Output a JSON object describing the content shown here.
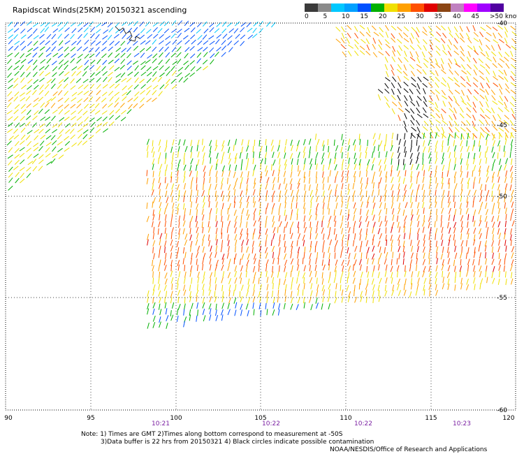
{
  "title": "Rapidscat Winds(25KM) 20150321 ascending",
  "legend": {
    "labels": [
      "0",
      "5",
      "10",
      "15",
      "20",
      "25",
      "30",
      "35",
      "40",
      "45",
      ">50 knots"
    ],
    "colors": [
      "#3a3a3a",
      "#8a8a8a",
      "#00c8ff",
      "#00a0ff",
      "#0050ff",
      "#00b000",
      "#f0e000",
      "#ffa000",
      "#ff5000",
      "#e00000",
      "#8b4513",
      "#c080c0",
      "#ff00ff",
      "#a000ff",
      "#5000a0"
    ]
  },
  "axes": {
    "x_ticks": [
      "90",
      "95",
      "100",
      "105",
      "110",
      "115",
      "120"
    ],
    "y_ticks": [
      "-40",
      "-45",
      "-50",
      "-55",
      "-60"
    ],
    "times": [
      "10:21",
      "10:22",
      "10:22",
      "10:23"
    ]
  },
  "notes": {
    "line1": "Note: 1) Times are GMT 2)Times along bottom correspond to measurement at -50S",
    "line2": "3)Data buffer is 22 hrs from 20150321 4) Black circles indicate possible contamination",
    "credit": "NOAA/NESDIS/Office of Research and Applications"
  }
}
